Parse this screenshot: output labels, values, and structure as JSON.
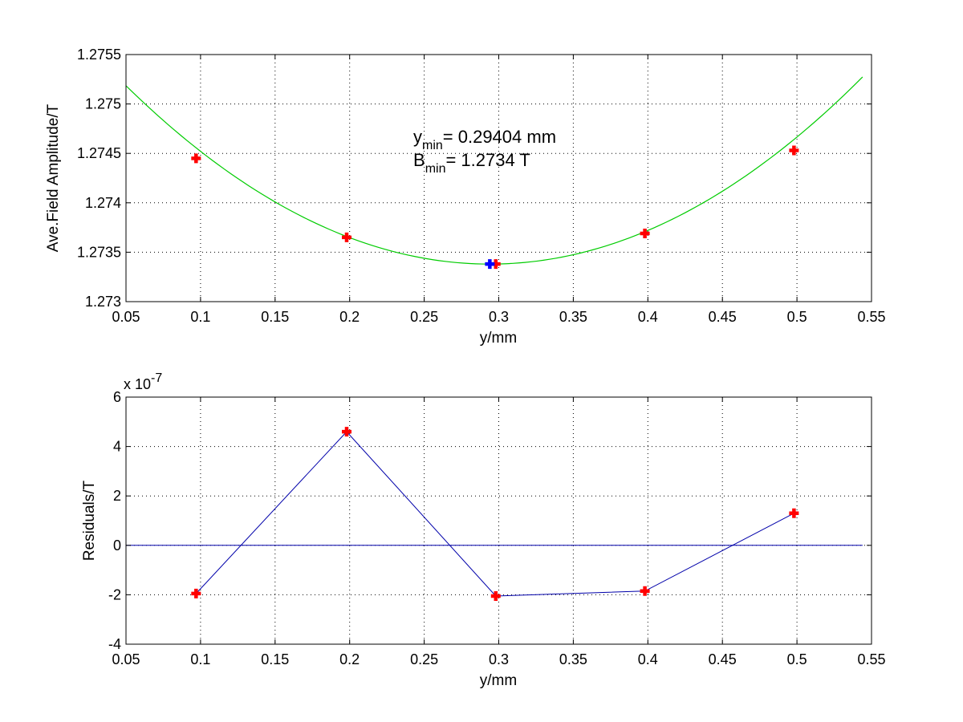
{
  "chart_data": [
    {
      "type": "line",
      "xlabel": "y/mm",
      "ylabel": "Ave.Field Amplitude/T",
      "xlim": [
        0.05,
        0.55
      ],
      "ylim": [
        1.273,
        1.2755
      ],
      "xticks": [
        0.05,
        0.1,
        0.15,
        0.2,
        0.25,
        0.3,
        0.35,
        0.4,
        0.45,
        0.5,
        0.55
      ],
      "xtick_labels": [
        "0.05",
        "0.1",
        "0.15",
        "0.2",
        "0.25",
        "0.3",
        "0.35",
        "0.4",
        "0.45",
        "0.5",
        "0.55"
      ],
      "yticks": [
        1.273,
        1.2735,
        1.274,
        1.2745,
        1.275,
        1.2755
      ],
      "ytick_labels": [
        "1.273",
        "1.2735",
        "1.274",
        "1.2745",
        "1.275",
        "1.2755"
      ],
      "grid": true,
      "series": [
        {
          "kind": "fit-curve",
          "color": "#00cc00",
          "quadratic": {
            "x_min": 0.29404,
            "y_min": 1.27338,
            "curvature": 0.0303
          },
          "x_range": [
            0.05,
            0.544
          ]
        },
        {
          "kind": "markers",
          "color": "#ff0000",
          "x": [
            0.097,
            0.198,
            0.298,
            0.398,
            0.498
          ],
          "y": [
            1.27445,
            1.27365,
            1.27338,
            1.27369,
            1.27453
          ]
        },
        {
          "kind": "minimum-marker",
          "color": "#0000ff",
          "x": [
            0.294
          ],
          "y": [
            1.27338
          ]
        }
      ],
      "annotation": {
        "line1": {
          "var": "y",
          "sub": "min",
          "text": "= 0.29404 mm"
        },
        "line2": {
          "var": "B",
          "sub": "min",
          "text": "= 1.2734 T"
        }
      }
    },
    {
      "type": "line",
      "xlabel": "y/mm",
      "ylabel": "Residuals/T",
      "exponent_base": "x 10",
      "exponent_power": "-7",
      "xlim": [
        0.05,
        0.55
      ],
      "ylim": [
        -4,
        6
      ],
      "xticks": [
        0.05,
        0.1,
        0.15,
        0.2,
        0.25,
        0.3,
        0.35,
        0.4,
        0.45,
        0.5,
        0.55
      ],
      "xtick_labels": [
        "0.05",
        "0.1",
        "0.15",
        "0.2",
        "0.25",
        "0.3",
        "0.35",
        "0.4",
        "0.45",
        "0.5",
        "0.55"
      ],
      "yticks": [
        -4,
        -2,
        0,
        2,
        4,
        6
      ],
      "ytick_labels": [
        "-4",
        "-2",
        "0",
        "2",
        "4",
        "6"
      ],
      "grid": true,
      "series": [
        {
          "kind": "residual-line",
          "color": "#0000aa",
          "x": [
            0.097,
            0.198,
            0.298,
            0.398,
            0.498
          ],
          "y": [
            -1.95,
            4.6,
            -2.05,
            -1.85,
            1.3
          ]
        },
        {
          "kind": "markers",
          "color": "#ff0000",
          "x": [
            0.097,
            0.198,
            0.298,
            0.398,
            0.498
          ],
          "y": [
            -1.95,
            4.6,
            -2.05,
            -1.85,
            1.3
          ]
        },
        {
          "kind": "zero-line",
          "color": "#0000aa",
          "x": [
            0.05,
            0.544
          ],
          "y": [
            0,
            0
          ]
        }
      ]
    }
  ]
}
